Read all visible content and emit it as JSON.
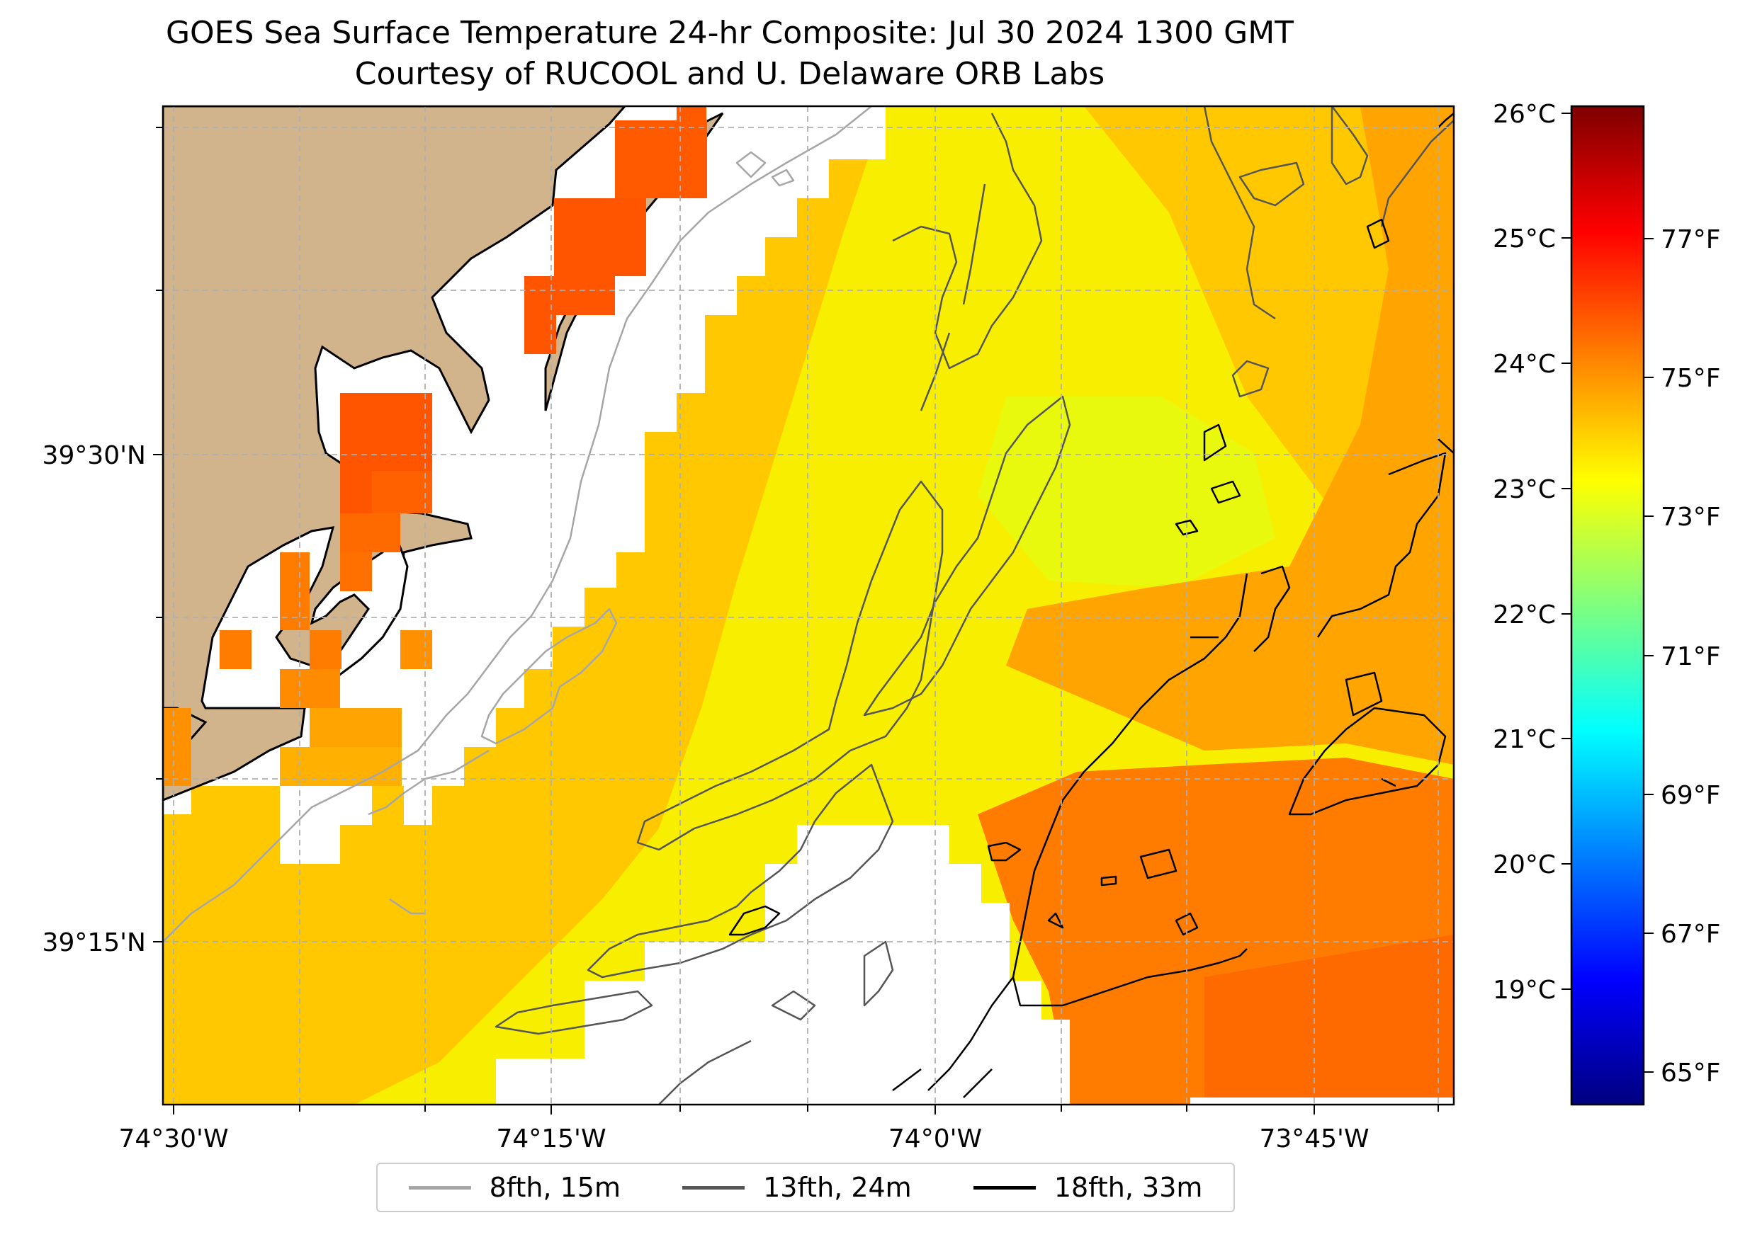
{
  "title": {
    "line1": "GOES Sea Surface Temperature 24-hr Composite: Jul 30 2024 1300 GMT",
    "line2": "Courtesy of RUCOOL and U. Delaware ORB Labs"
  },
  "map": {
    "lon_labels": [
      "74°30'W",
      "74°15'W",
      "74°0'W",
      "73°45'W"
    ],
    "lat_labels": [
      "39°30'N",
      "39°15'N"
    ],
    "colors": {
      "land": "#d2b48c",
      "coastline": "#000000",
      "gridline": "#b0b0b0",
      "nodata": "#ffffff",
      "sst_orange_red": "#ff5500",
      "sst_orange": "#ff7c00",
      "sst_light_orange": "#ffa400",
      "sst_amber": "#ffc800",
      "sst_yellow": "#f8ee00",
      "sst_yellow_green": "#e6fa10",
      "contour_8fth": "#a6a6a6",
      "contour_13fth": "#555555",
      "contour_18fth": "#000000"
    }
  },
  "colorbar": {
    "celsius_labels": [
      "26°C",
      "25°C",
      "24°C",
      "23°C",
      "22°C",
      "21°C",
      "20°C",
      "19°C"
    ],
    "fahrenheit_labels": [
      "77°F",
      "75°F",
      "73°F",
      "71°F",
      "69°F",
      "67°F",
      "65°F"
    ],
    "colormap": "jet",
    "stops": [
      "#00007f",
      "#0000ff",
      "#007fff",
      "#00ffff",
      "#7fff7f",
      "#ffff00",
      "#ff7f00",
      "#ff0000",
      "#7f0000"
    ]
  },
  "legend": {
    "items": [
      {
        "label": "8fth, 15m",
        "color": "#a6a6a6"
      },
      {
        "label": "13fth, 24m",
        "color": "#555555"
      },
      {
        "label": "18fth, 33m",
        "color": "#000000"
      }
    ]
  }
}
